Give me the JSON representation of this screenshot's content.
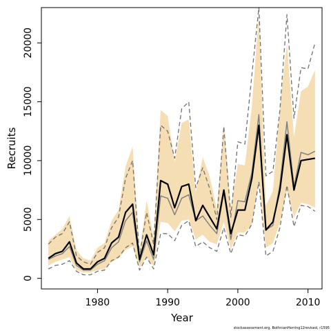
{
  "chart_data": {
    "type": "line",
    "xlabel": "Year",
    "ylabel": "Recruits",
    "xlim": [
      1972,
      2012
    ],
    "ylim": [
      -900,
      23000
    ],
    "x_ticks": [
      1980,
      1990,
      2000,
      2010
    ],
    "y_ticks": [
      0,
      5000,
      10000,
      15000,
      20000
    ],
    "grid": false,
    "footer": "stockassessment.org, BothnianHerring12revised, r1595",
    "colors": {
      "ci_band": "#f5deb3",
      "main_line": "#000000",
      "secondary_line": "#808080",
      "dashed_bounds": "#707070"
    },
    "x": [
      1973,
      1974,
      1975,
      1976,
      1977,
      1978,
      1979,
      1980,
      1981,
      1982,
      1983,
      1984,
      1985,
      1986,
      1987,
      1988,
      1989,
      1990,
      1991,
      1992,
      1993,
      1994,
      1995,
      1996,
      1997,
      1998,
      1999,
      2000,
      2001,
      2002,
      2003,
      2004,
      2005,
      2006,
      2007,
      2008,
      2009,
      2010,
      2011
    ],
    "series": [
      {
        "role": "ci_band",
        "lower": [
          1100,
          1400,
          1600,
          1800,
          700,
          500,
          500,
          700,
          800,
          1400,
          1700,
          2400,
          2700,
          900,
          1800,
          1000,
          4800,
          4700,
          4000,
          4900,
          5000,
          3300,
          3700,
          3100,
          2900,
          4800,
          2500,
          3900,
          3900,
          4600,
          8200,
          2600,
          3000,
          4700,
          7400,
          5200,
          6400,
          6300,
          6000
        ],
        "upper": [
          3200,
          3700,
          4200,
          5300,
          2400,
          1700,
          1500,
          2600,
          3000,
          4900,
          5800,
          9500,
          11200,
          2300,
          6600,
          3500,
          14300,
          13800,
          9900,
          13200,
          13500,
          7300,
          10300,
          8600,
          5900,
          13100,
          6000,
          9700,
          9600,
          14600,
          22500,
          6200,
          7400,
          14500,
          20000,
          12000,
          15900,
          16300,
          17700
        ]
      },
      {
        "role": "main",
        "values": [
          1700,
          2100,
          2300,
          3100,
          1300,
          800,
          800,
          1400,
          1700,
          3000,
          3500,
          5600,
          6300,
          1600,
          3700,
          2000,
          8300,
          8000,
          6000,
          7800,
          8000,
          4900,
          6200,
          5200,
          4200,
          7500,
          3800,
          5800,
          5800,
          8500,
          13000,
          4100,
          4800,
          7500,
          12200,
          7500,
          10000,
          10100,
          10200
        ]
      },
      {
        "role": "secondary",
        "values": [
          1600,
          1900,
          2100,
          2700,
          1100,
          700,
          700,
          1200,
          1500,
          2600,
          3100,
          4900,
          5600,
          1400,
          3200,
          1600,
          7000,
          6800,
          5400,
          6800,
          7100,
          4900,
          5300,
          4500,
          3800,
          7300,
          3300,
          6600,
          6500,
          9000,
          13900,
          4100,
          4500,
          8000,
          13300,
          7800,
          10700,
          10500,
          10800
        ]
      },
      {
        "role": "upper_bound",
        "values": [
          2900,
          3500,
          3800,
          4800,
          1900,
          1400,
          1200,
          2200,
          2600,
          4300,
          5200,
          8500,
          10000,
          1900,
          5600,
          2900,
          13000,
          12500,
          10200,
          14400,
          15000,
          7700,
          9400,
          7600,
          5000,
          12900,
          5200,
          11600,
          11400,
          17300,
          23000,
          8700,
          9100,
          14300,
          22400,
          13600,
          17900,
          17800,
          20000
        ]
      },
      {
        "role": "lower_bound",
        "values": [
          800,
          1100,
          1200,
          1500,
          600,
          300,
          300,
          600,
          700,
          1500,
          1800,
          2600,
          3000,
          700,
          1800,
          800,
          3800,
          3800,
          3200,
          4500,
          4900,
          2700,
          3100,
          2600,
          2300,
          4300,
          2100,
          3700,
          3600,
          4600,
          8200,
          1900,
          2300,
          4300,
          7900,
          4400,
          6200,
          6100,
          5700
        ]
      }
    ]
  }
}
